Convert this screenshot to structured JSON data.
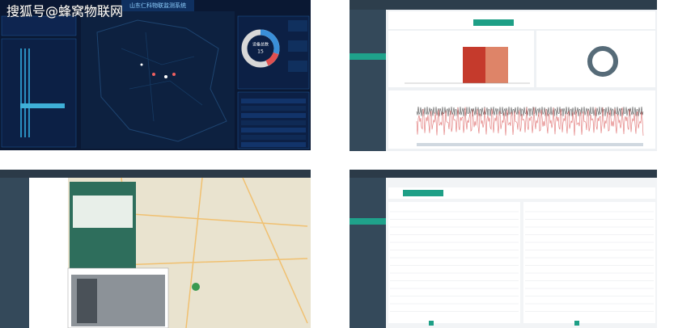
{
  "watermark": "搜狐号@蜂窝物联网",
  "dashboard": {
    "title": "山东仁科物联监测系统",
    "donut_label": "设备总数",
    "donut_value": "15"
  }
}
